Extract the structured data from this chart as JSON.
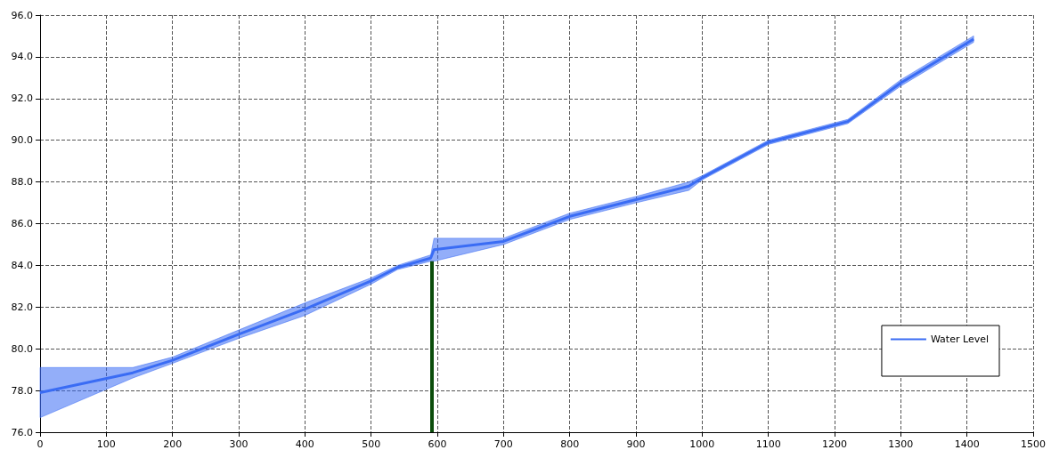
{
  "chart_data": {
    "type": "line",
    "x": [
      0,
      140,
      200,
      300,
      400,
      500,
      540,
      590,
      595,
      700,
      800,
      900,
      980,
      1000,
      1100,
      1220,
      1300,
      1410
    ],
    "series": [
      {
        "name": "Water Level",
        "color": "#3a6cf4",
        "values": [
          77.9,
          78.85,
          79.45,
          80.7,
          81.9,
          83.25,
          83.9,
          84.35,
          84.75,
          85.15,
          86.35,
          87.15,
          87.8,
          88.2,
          89.9,
          90.9,
          92.75,
          94.85
        ],
        "lower": [
          76.7,
          78.6,
          79.3,
          80.5,
          81.6,
          83.1,
          83.8,
          84.2,
          84.2,
          85.0,
          86.2,
          87.0,
          87.6,
          88.1,
          89.8,
          90.8,
          92.6,
          94.7
        ],
        "upper": [
          79.1,
          79.1,
          79.6,
          80.9,
          82.2,
          83.4,
          84.0,
          84.5,
          85.3,
          85.3,
          86.5,
          87.3,
          88.0,
          88.3,
          90.0,
          91.0,
          92.9,
          95.0
        ]
      }
    ],
    "ref_lines": [
      {
        "axis": "x",
        "value": 592,
        "color": "#0b4d0b"
      }
    ],
    "xlim": [
      0,
      1500
    ],
    "xticks": [
      0,
      100,
      200,
      300,
      400,
      500,
      600,
      700,
      800,
      900,
      1000,
      1100,
      1200,
      1300,
      1400,
      1500
    ],
    "ylim": [
      76,
      96
    ],
    "yticks": [
      {
        "value": 76,
        "label": "76.0"
      },
      {
        "value": 78,
        "label": "78.0"
      },
      {
        "value": 80,
        "label": "80.0"
      },
      {
        "value": 82,
        "label": "82.0"
      },
      {
        "value": 84,
        "label": "84.0"
      },
      {
        "value": 86,
        "label": "86.0"
      },
      {
        "value": 88,
        "label": "88.0"
      },
      {
        "value": 90,
        "label": "90.0"
      },
      {
        "value": 92,
        "label": "92.0"
      },
      {
        "value": 94,
        "label": "94.0"
      },
      {
        "value": 96,
        "label": "96.0"
      }
    ],
    "grid": true,
    "legend": "bottom right",
    "marker": "none",
    "line_style": "solid"
  }
}
